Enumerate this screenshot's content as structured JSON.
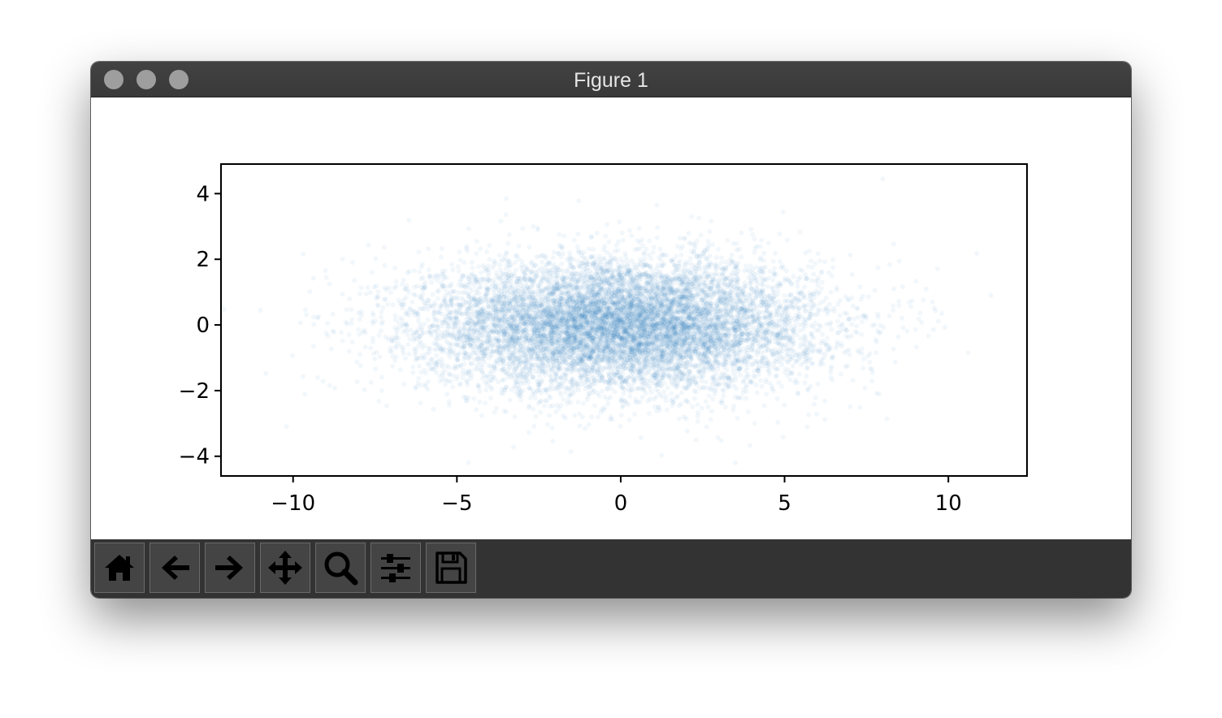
{
  "window": {
    "title": "Figure 1"
  },
  "toolbar": {
    "buttons": [
      {
        "name": "home-button",
        "icon": "home-icon"
      },
      {
        "name": "back-button",
        "icon": "arrow-left-icon"
      },
      {
        "name": "forward-button",
        "icon": "arrow-right-icon"
      },
      {
        "name": "pan-button",
        "icon": "move-icon"
      },
      {
        "name": "zoom-button",
        "icon": "magnifier-icon"
      },
      {
        "name": "configure-subplots-button",
        "icon": "sliders-icon"
      },
      {
        "name": "save-button",
        "icon": "floppy-disk-icon"
      }
    ]
  },
  "chart_data": {
    "type": "scatter",
    "title": "",
    "xlabel": "",
    "ylabel": "",
    "xlim": [
      -12.2,
      12.4
    ],
    "ylim": [
      -4.6,
      4.9
    ],
    "xticks": [
      "−10",
      "−5",
      "0",
      "5",
      "10"
    ],
    "xtick_values": [
      -10,
      -5,
      0,
      5,
      10
    ],
    "yticks": [
      "4",
      "2",
      "0",
      "−2",
      "−4"
    ],
    "ytick_values": [
      4,
      2,
      0,
      -2,
      -4
    ],
    "grid": false,
    "point_color": "#1f77b4",
    "point_alpha": 0.06,
    "n_points": 10000,
    "distribution": {
      "x_mean": 0,
      "x_std": 3.0,
      "y_mean": 0,
      "y_std": 1.0
    },
    "notable_outliers": [
      {
        "x": -11.0,
        "y": 0.45
      },
      {
        "x": -10.2,
        "y": -3.1
      },
      {
        "x": 8.0,
        "y": 4.45
      },
      {
        "x": 11.3,
        "y": 0.9
      },
      {
        "x": 10.6,
        "y": -0.85
      },
      {
        "x": 3.5,
        "y": -4.2
      },
      {
        "x": 2.3,
        "y": -3.5
      },
      {
        "x": 1.1,
        "y": 3.65
      }
    ]
  }
}
